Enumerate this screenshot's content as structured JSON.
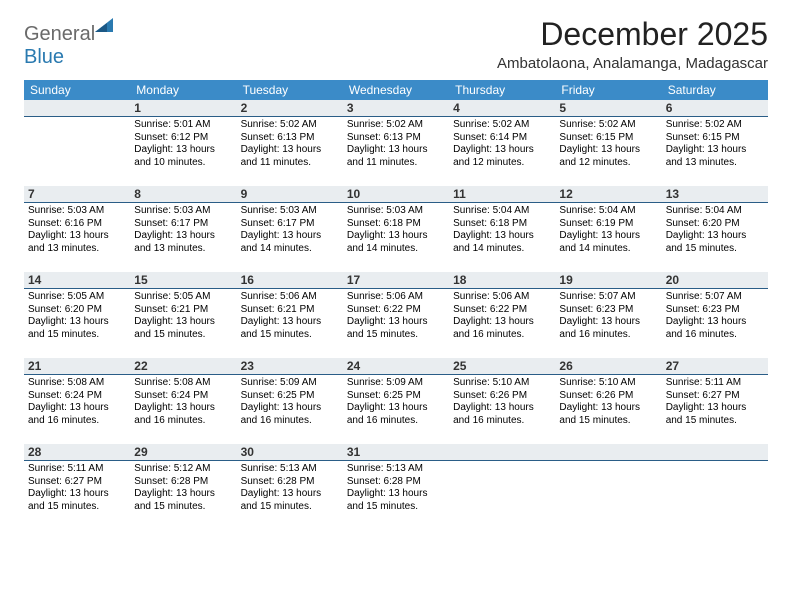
{
  "logo": {
    "text_gen": "General",
    "text_blue": "Blue"
  },
  "title": "December 2025",
  "location": "Ambatolaona, Analamanga, Madagascar",
  "colors": {
    "header_bg": "#3b8bc8",
    "header_text": "#ffffff",
    "daynum_bg": "#e9edf0",
    "daynum_border": "#2a5d87",
    "logo_gray": "#6a6a6a",
    "logo_blue": "#2a7ab0",
    "page_bg": "#ffffff"
  },
  "weekdays": [
    "Sunday",
    "Monday",
    "Tuesday",
    "Wednesday",
    "Thursday",
    "Friday",
    "Saturday"
  ],
  "weeks": [
    [
      {
        "day": "",
        "sunrise": "",
        "sunset": "",
        "daylight": ""
      },
      {
        "day": "1",
        "sunrise": "Sunrise: 5:01 AM",
        "sunset": "Sunset: 6:12 PM",
        "daylight": "Daylight: 13 hours and 10 minutes."
      },
      {
        "day": "2",
        "sunrise": "Sunrise: 5:02 AM",
        "sunset": "Sunset: 6:13 PM",
        "daylight": "Daylight: 13 hours and 11 minutes."
      },
      {
        "day": "3",
        "sunrise": "Sunrise: 5:02 AM",
        "sunset": "Sunset: 6:13 PM",
        "daylight": "Daylight: 13 hours and 11 minutes."
      },
      {
        "day": "4",
        "sunrise": "Sunrise: 5:02 AM",
        "sunset": "Sunset: 6:14 PM",
        "daylight": "Daylight: 13 hours and 12 minutes."
      },
      {
        "day": "5",
        "sunrise": "Sunrise: 5:02 AM",
        "sunset": "Sunset: 6:15 PM",
        "daylight": "Daylight: 13 hours and 12 minutes."
      },
      {
        "day": "6",
        "sunrise": "Sunrise: 5:02 AM",
        "sunset": "Sunset: 6:15 PM",
        "daylight": "Daylight: 13 hours and 13 minutes."
      }
    ],
    [
      {
        "day": "7",
        "sunrise": "Sunrise: 5:03 AM",
        "sunset": "Sunset: 6:16 PM",
        "daylight": "Daylight: 13 hours and 13 minutes."
      },
      {
        "day": "8",
        "sunrise": "Sunrise: 5:03 AM",
        "sunset": "Sunset: 6:17 PM",
        "daylight": "Daylight: 13 hours and 13 minutes."
      },
      {
        "day": "9",
        "sunrise": "Sunrise: 5:03 AM",
        "sunset": "Sunset: 6:17 PM",
        "daylight": "Daylight: 13 hours and 14 minutes."
      },
      {
        "day": "10",
        "sunrise": "Sunrise: 5:03 AM",
        "sunset": "Sunset: 6:18 PM",
        "daylight": "Daylight: 13 hours and 14 minutes."
      },
      {
        "day": "11",
        "sunrise": "Sunrise: 5:04 AM",
        "sunset": "Sunset: 6:18 PM",
        "daylight": "Daylight: 13 hours and 14 minutes."
      },
      {
        "day": "12",
        "sunrise": "Sunrise: 5:04 AM",
        "sunset": "Sunset: 6:19 PM",
        "daylight": "Daylight: 13 hours and 14 minutes."
      },
      {
        "day": "13",
        "sunrise": "Sunrise: 5:04 AM",
        "sunset": "Sunset: 6:20 PM",
        "daylight": "Daylight: 13 hours and 15 minutes."
      }
    ],
    [
      {
        "day": "14",
        "sunrise": "Sunrise: 5:05 AM",
        "sunset": "Sunset: 6:20 PM",
        "daylight": "Daylight: 13 hours and 15 minutes."
      },
      {
        "day": "15",
        "sunrise": "Sunrise: 5:05 AM",
        "sunset": "Sunset: 6:21 PM",
        "daylight": "Daylight: 13 hours and 15 minutes."
      },
      {
        "day": "16",
        "sunrise": "Sunrise: 5:06 AM",
        "sunset": "Sunset: 6:21 PM",
        "daylight": "Daylight: 13 hours and 15 minutes."
      },
      {
        "day": "17",
        "sunrise": "Sunrise: 5:06 AM",
        "sunset": "Sunset: 6:22 PM",
        "daylight": "Daylight: 13 hours and 15 minutes."
      },
      {
        "day": "18",
        "sunrise": "Sunrise: 5:06 AM",
        "sunset": "Sunset: 6:22 PM",
        "daylight": "Daylight: 13 hours and 16 minutes."
      },
      {
        "day": "19",
        "sunrise": "Sunrise: 5:07 AM",
        "sunset": "Sunset: 6:23 PM",
        "daylight": "Daylight: 13 hours and 16 minutes."
      },
      {
        "day": "20",
        "sunrise": "Sunrise: 5:07 AM",
        "sunset": "Sunset: 6:23 PM",
        "daylight": "Daylight: 13 hours and 16 minutes."
      }
    ],
    [
      {
        "day": "21",
        "sunrise": "Sunrise: 5:08 AM",
        "sunset": "Sunset: 6:24 PM",
        "daylight": "Daylight: 13 hours and 16 minutes."
      },
      {
        "day": "22",
        "sunrise": "Sunrise: 5:08 AM",
        "sunset": "Sunset: 6:24 PM",
        "daylight": "Daylight: 13 hours and 16 minutes."
      },
      {
        "day": "23",
        "sunrise": "Sunrise: 5:09 AM",
        "sunset": "Sunset: 6:25 PM",
        "daylight": "Daylight: 13 hours and 16 minutes."
      },
      {
        "day": "24",
        "sunrise": "Sunrise: 5:09 AM",
        "sunset": "Sunset: 6:25 PM",
        "daylight": "Daylight: 13 hours and 16 minutes."
      },
      {
        "day": "25",
        "sunrise": "Sunrise: 5:10 AM",
        "sunset": "Sunset: 6:26 PM",
        "daylight": "Daylight: 13 hours and 16 minutes."
      },
      {
        "day": "26",
        "sunrise": "Sunrise: 5:10 AM",
        "sunset": "Sunset: 6:26 PM",
        "daylight": "Daylight: 13 hours and 15 minutes."
      },
      {
        "day": "27",
        "sunrise": "Sunrise: 5:11 AM",
        "sunset": "Sunset: 6:27 PM",
        "daylight": "Daylight: 13 hours and 15 minutes."
      }
    ],
    [
      {
        "day": "28",
        "sunrise": "Sunrise: 5:11 AM",
        "sunset": "Sunset: 6:27 PM",
        "daylight": "Daylight: 13 hours and 15 minutes."
      },
      {
        "day": "29",
        "sunrise": "Sunrise: 5:12 AM",
        "sunset": "Sunset: 6:28 PM",
        "daylight": "Daylight: 13 hours and 15 minutes."
      },
      {
        "day": "30",
        "sunrise": "Sunrise: 5:13 AM",
        "sunset": "Sunset: 6:28 PM",
        "daylight": "Daylight: 13 hours and 15 minutes."
      },
      {
        "day": "31",
        "sunrise": "Sunrise: 5:13 AM",
        "sunset": "Sunset: 6:28 PM",
        "daylight": "Daylight: 13 hours and 15 minutes."
      },
      {
        "day": "",
        "sunrise": "",
        "sunset": "",
        "daylight": ""
      },
      {
        "day": "",
        "sunrise": "",
        "sunset": "",
        "daylight": ""
      },
      {
        "day": "",
        "sunrise": "",
        "sunset": "",
        "daylight": ""
      }
    ]
  ]
}
